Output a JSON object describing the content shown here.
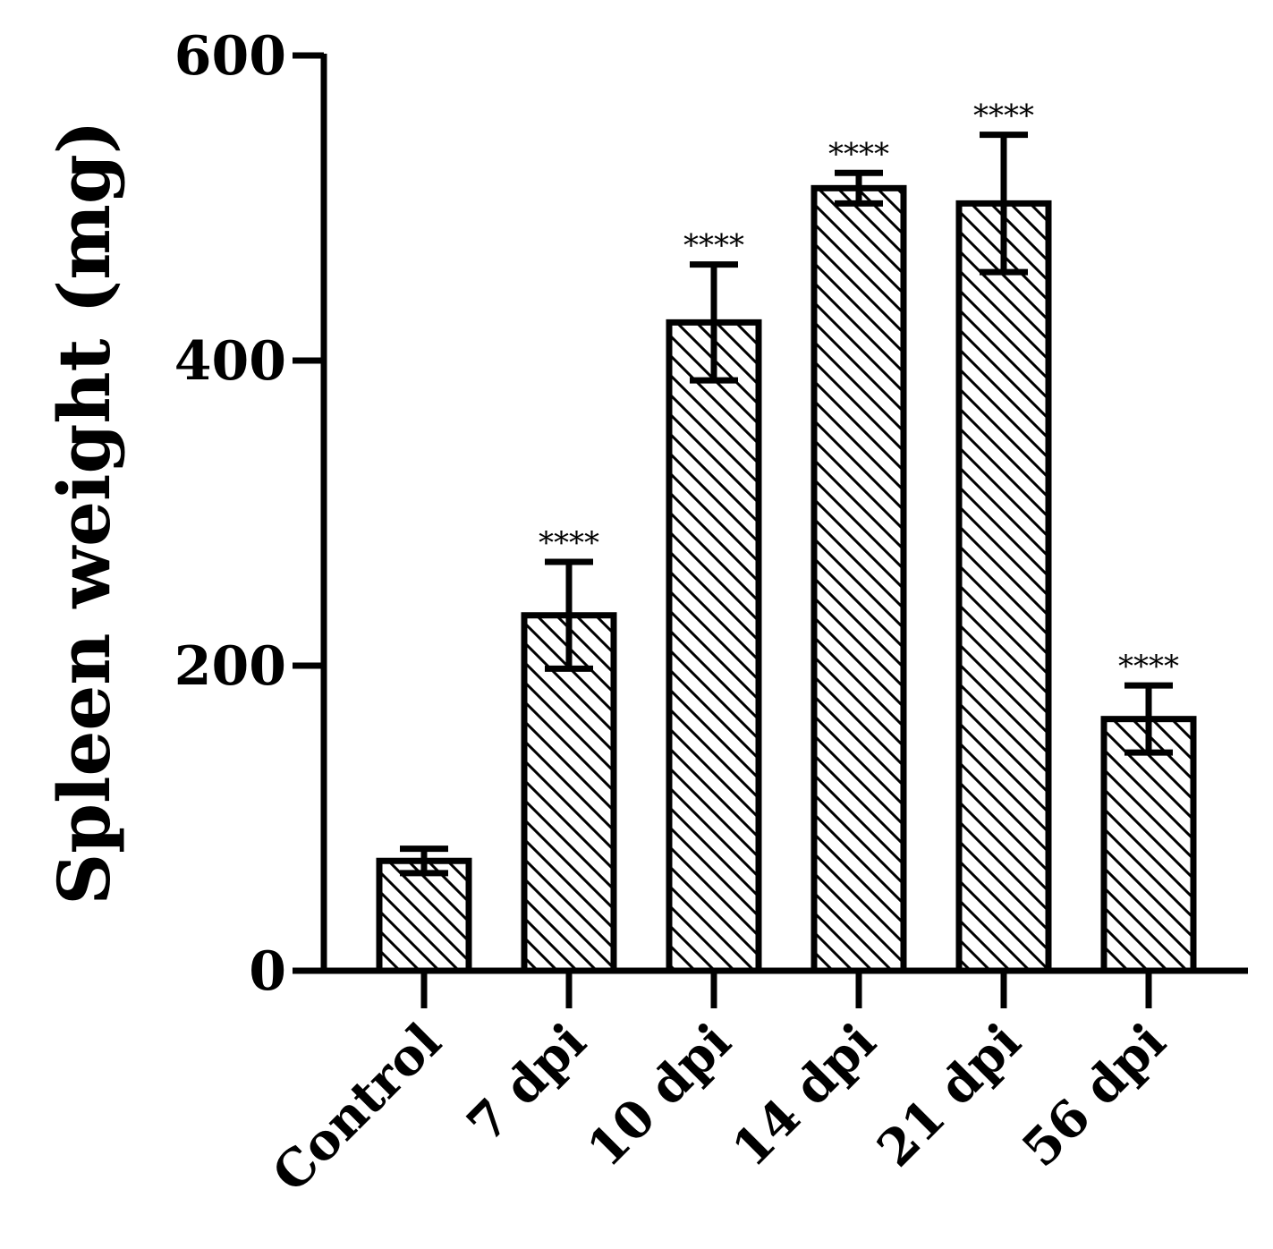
{
  "chart_data": {
    "type": "bar",
    "title": "",
    "xlabel": "",
    "ylabel": "Spleen weight (mg)",
    "ylim": [
      0,
      600
    ],
    "yticks": [
      "0",
      "200",
      "400",
      "600"
    ],
    "categories": [
      "Control",
      "7 dpi",
      "10 dpi",
      "14 dpi",
      "21 dpi",
      "56 dpi"
    ],
    "values": [
      72,
      233,
      425,
      513,
      503,
      165
    ],
    "errors": [
      8,
      35,
      38,
      10,
      45,
      22
    ],
    "significance": [
      "",
      "****",
      "****",
      "****",
      "****",
      "****"
    ],
    "bar_fill": "diagonal-hatch",
    "grid": false,
    "legend": "none"
  }
}
